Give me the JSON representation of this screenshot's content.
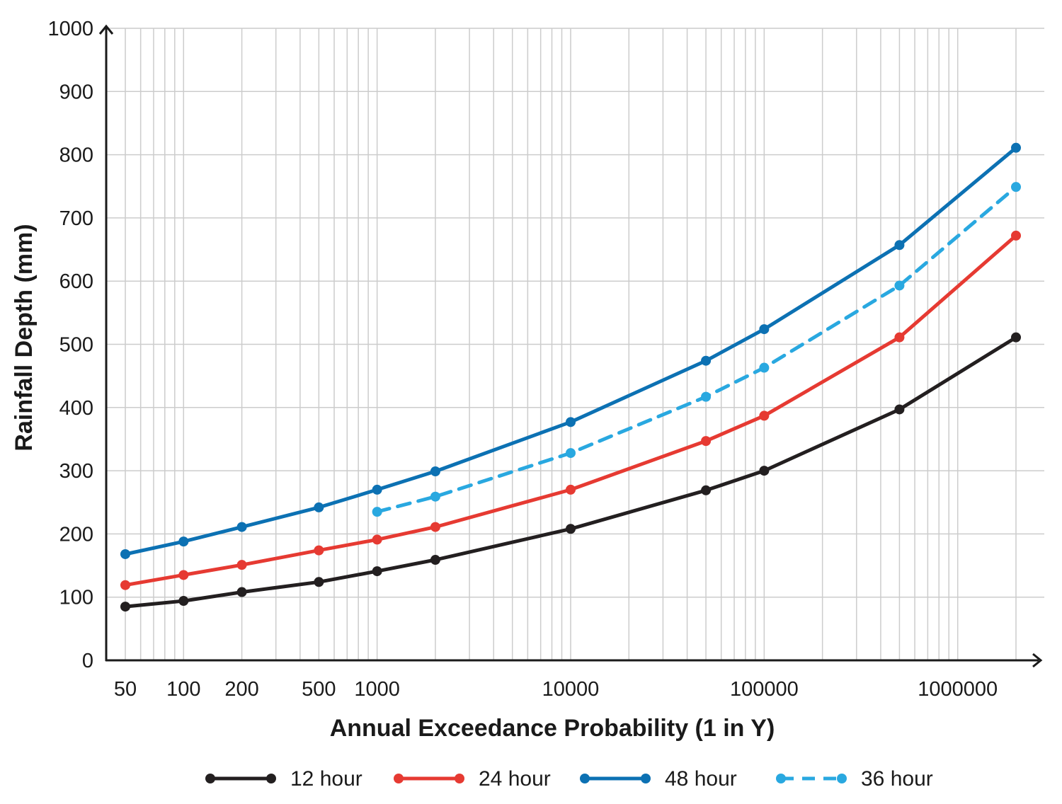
{
  "chart_data": {
    "type": "line",
    "xlabel": "Annual Exceedance Probability (1 in Y)",
    "ylabel": "Rainfall Depth (mm)",
    "title": "",
    "xscale": "log",
    "grid": true,
    "legend_position": "bottom",
    "ylim": [
      0,
      1000
    ],
    "xlim": [
      50,
      2000000
    ],
    "yticks": [
      0,
      100,
      200,
      300,
      400,
      500,
      600,
      700,
      800,
      900,
      1000
    ],
    "ytick_labels": [
      "0",
      "100",
      "200",
      "300",
      "400",
      "500",
      "600",
      "700",
      "800",
      "900",
      "1000"
    ],
    "xticks": [
      50,
      100,
      200,
      500,
      1000,
      10000,
      100000,
      1000000
    ],
    "xtick_labels": [
      "50",
      "100",
      "200",
      "500",
      "1000",
      "10000",
      "100000",
      "1000000"
    ],
    "series": [
      {
        "name": "12 hour",
        "color": "#231f20",
        "dashed": false,
        "points": [
          [
            50,
            85
          ],
          [
            100,
            94
          ],
          [
            200,
            108
          ],
          [
            500,
            124
          ],
          [
            1000,
            141
          ],
          [
            2000,
            159
          ],
          [
            10000,
            208
          ],
          [
            50000,
            269
          ],
          [
            100000,
            300
          ],
          [
            500000,
            397
          ],
          [
            2000000,
            511
          ]
        ]
      },
      {
        "name": "24 hour",
        "color": "#e63a32",
        "dashed": false,
        "points": [
          [
            50,
            119
          ],
          [
            100,
            135
          ],
          [
            200,
            151
          ],
          [
            500,
            174
          ],
          [
            1000,
            191
          ],
          [
            2000,
            211
          ],
          [
            10000,
            270
          ],
          [
            50000,
            347
          ],
          [
            100000,
            387
          ],
          [
            500000,
            511
          ],
          [
            2000000,
            672
          ]
        ]
      },
      {
        "name": "48 hour",
        "color": "#0c71b3",
        "dashed": false,
        "points": [
          [
            50,
            168
          ],
          [
            100,
            188
          ],
          [
            200,
            211
          ],
          [
            500,
            242
          ],
          [
            1000,
            270
          ],
          [
            2000,
            299
          ],
          [
            10000,
            377
          ],
          [
            50000,
            474
          ],
          [
            100000,
            524
          ],
          [
            500000,
            657
          ],
          [
            2000000,
            811
          ]
        ]
      },
      {
        "name": "36 hour",
        "color": "#29a8e0",
        "dashed": true,
        "points": [
          [
            1000,
            235
          ],
          [
            2000,
            259
          ],
          [
            10000,
            328
          ],
          [
            50000,
            417
          ],
          [
            100000,
            463
          ],
          [
            500000,
            593
          ],
          [
            2000000,
            749
          ]
        ]
      }
    ]
  }
}
